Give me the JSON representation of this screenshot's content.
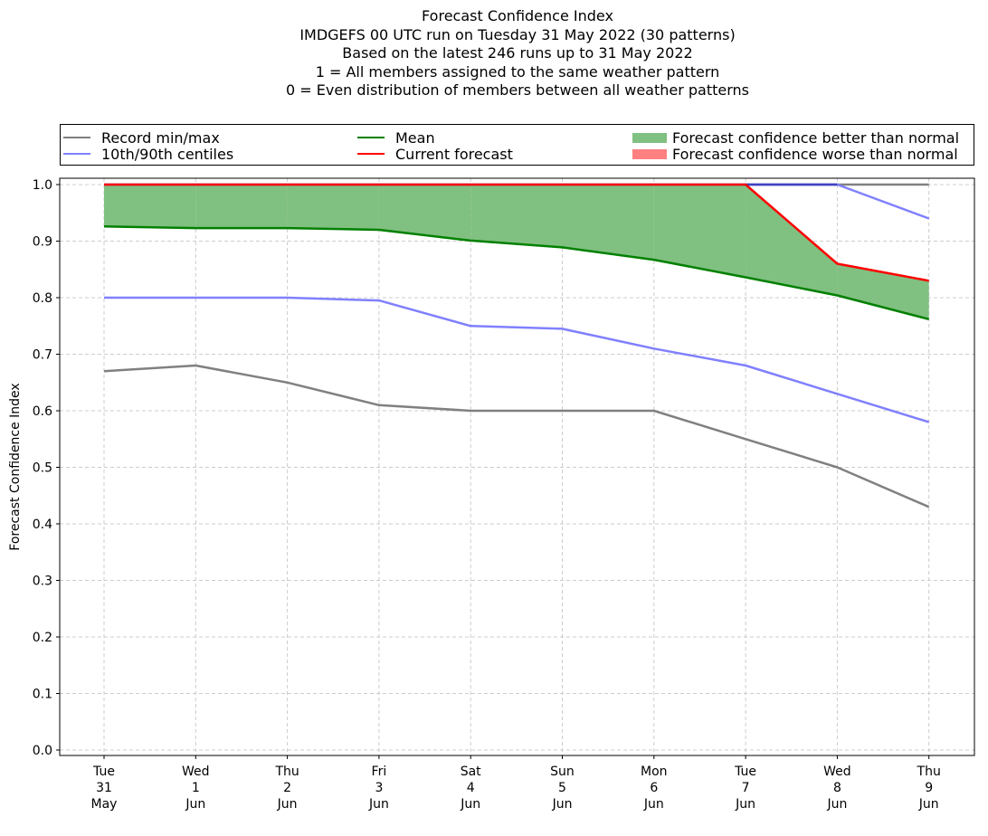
{
  "title_lines": [
    "Forecast Confidence Index",
    "IMDGEFS 00 UTC run on Tuesday 31 May 2022 (30 patterns)",
    "Based on the latest 246 runs up to 31 May 2022",
    "1 = All members assigned to the same weather pattern",
    "0 = Even distribution of members between all weather patterns"
  ],
  "legend": {
    "record": "Record min/max",
    "centiles": "10th/90th centiles",
    "mean": "Mean",
    "current": "Current forecast",
    "better": "Forecast confidence better than normal",
    "worse": "Forecast confidence worse than normal"
  },
  "colors": {
    "record": "#808080",
    "centiles": "#8080ff",
    "mean": "#008000",
    "current": "#ff0000",
    "better": "#80c080",
    "worse": "#ff8080",
    "overlap": "#4040c0",
    "grid": "#cccccc"
  },
  "chart_data": {
    "type": "line",
    "ylabel": "Forecast Confidence Index",
    "ylim": [
      0,
      1
    ],
    "yticks": [
      "0.0",
      "0.1",
      "0.2",
      "0.3",
      "0.4",
      "0.5",
      "0.6",
      "0.7",
      "0.8",
      "0.9",
      "1.0"
    ],
    "grid": true,
    "legend_position": "top",
    "categories": [
      [
        "Tue",
        "31",
        "May"
      ],
      [
        "Wed",
        "1",
        "Jun"
      ],
      [
        "Thu",
        "2",
        "Jun"
      ],
      [
        "Fri",
        "3",
        "Jun"
      ],
      [
        "Sat",
        "4",
        "Jun"
      ],
      [
        "Sun",
        "5",
        "Jun"
      ],
      [
        "Mon",
        "6",
        "Jun"
      ],
      [
        "Tue",
        "7",
        "Jun"
      ],
      [
        "Wed",
        "8",
        "Jun"
      ],
      [
        "Thu",
        "9",
        "Jun"
      ]
    ],
    "series": [
      {
        "name": "Record min",
        "values": [
          0.67,
          0.68,
          0.65,
          0.61,
          0.6,
          0.6,
          0.6,
          0.55,
          0.5,
          0.43
        ]
      },
      {
        "name": "Record max",
        "values": [
          1.0,
          1.0,
          1.0,
          1.0,
          1.0,
          1.0,
          1.0,
          1.0,
          1.0,
          1.0
        ]
      },
      {
        "name": "10th centile",
        "values": [
          0.8,
          0.8,
          0.8,
          0.795,
          0.75,
          0.745,
          0.71,
          0.68,
          0.63,
          0.58
        ]
      },
      {
        "name": "90th centile",
        "values": [
          1.0,
          1.0,
          1.0,
          1.0,
          1.0,
          1.0,
          1.0,
          1.0,
          1.0,
          0.94
        ]
      },
      {
        "name": "Mean",
        "values": [
          0.926,
          0.923,
          0.923,
          0.92,
          0.901,
          0.889,
          0.867,
          0.836,
          0.804,
          0.762
        ]
      },
      {
        "name": "Current forecast",
        "values": [
          1.0,
          1.0,
          1.0,
          1.0,
          1.0,
          1.0,
          1.0,
          1.0,
          0.86,
          0.83
        ]
      }
    ]
  }
}
